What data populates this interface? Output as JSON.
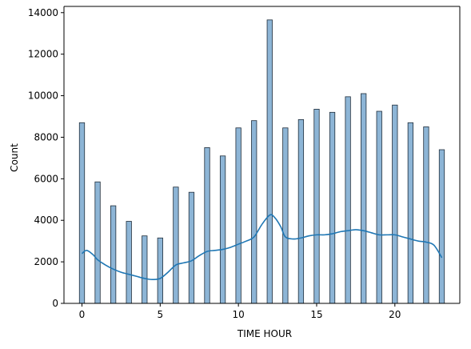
{
  "chart_data": {
    "type": "bar",
    "title": "",
    "xlabel": "TIME HOUR",
    "ylabel": "Count",
    "xlim": [
      -1.15,
      24.15
    ],
    "ylim": [
      0,
      14300
    ],
    "x_ticks": [
      0,
      5,
      10,
      15,
      20
    ],
    "y_ticks": [
      0,
      2000,
      4000,
      6000,
      8000,
      10000,
      12000,
      14000
    ],
    "bar_width": 0.33,
    "grid": false,
    "legend": "none",
    "colors": {
      "bar_fill": "#8db5d6",
      "bar_edge": "#1f2d3a",
      "kde_line": "#1f77b4",
      "axis": "#000000"
    },
    "series": [
      {
        "kind": "histogram",
        "x": [
          0,
          1,
          2,
          3,
          4,
          5,
          6,
          7,
          8,
          9,
          10,
          11,
          12,
          13,
          14,
          15,
          16,
          17,
          18,
          19,
          20,
          21,
          22,
          23
        ],
        "values": [
          8700,
          5850,
          4700,
          3950,
          3250,
          3150,
          5600,
          5350,
          7500,
          7100,
          8450,
          8800,
          13650,
          8450,
          8850,
          9350,
          9200,
          9950,
          10100,
          9250,
          9550,
          8700,
          8500,
          7400
        ]
      },
      {
        "kind": "kde",
        "x": [
          0,
          0.3,
          0.7,
          1,
          1.5,
          2,
          2.5,
          3,
          3.5,
          4,
          4.5,
          5,
          5.5,
          6,
          6.5,
          7,
          7.5,
          8,
          8.5,
          9,
          9.5,
          10,
          10.5,
          11,
          11.5,
          12,
          12.3,
          12.7,
          13,
          13.5,
          14,
          14.5,
          15,
          15.5,
          16,
          16.5,
          17,
          17.5,
          18,
          18.5,
          19,
          19.5,
          20,
          20.5,
          21,
          21.5,
          22,
          22.5,
          23
        ],
        "values": [
          2400,
          2550,
          2350,
          2100,
          1850,
          1650,
          1500,
          1400,
          1300,
          1200,
          1150,
          1200,
          1500,
          1850,
          1950,
          2050,
          2300,
          2500,
          2550,
          2600,
          2700,
          2850,
          3000,
          3200,
          3800,
          4250,
          4150,
          3700,
          3200,
          3100,
          3150,
          3250,
          3300,
          3300,
          3350,
          3450,
          3500,
          3550,
          3500,
          3400,
          3300,
          3300,
          3300,
          3200,
          3100,
          3000,
          2950,
          2800,
          2200
        ]
      }
    ]
  }
}
